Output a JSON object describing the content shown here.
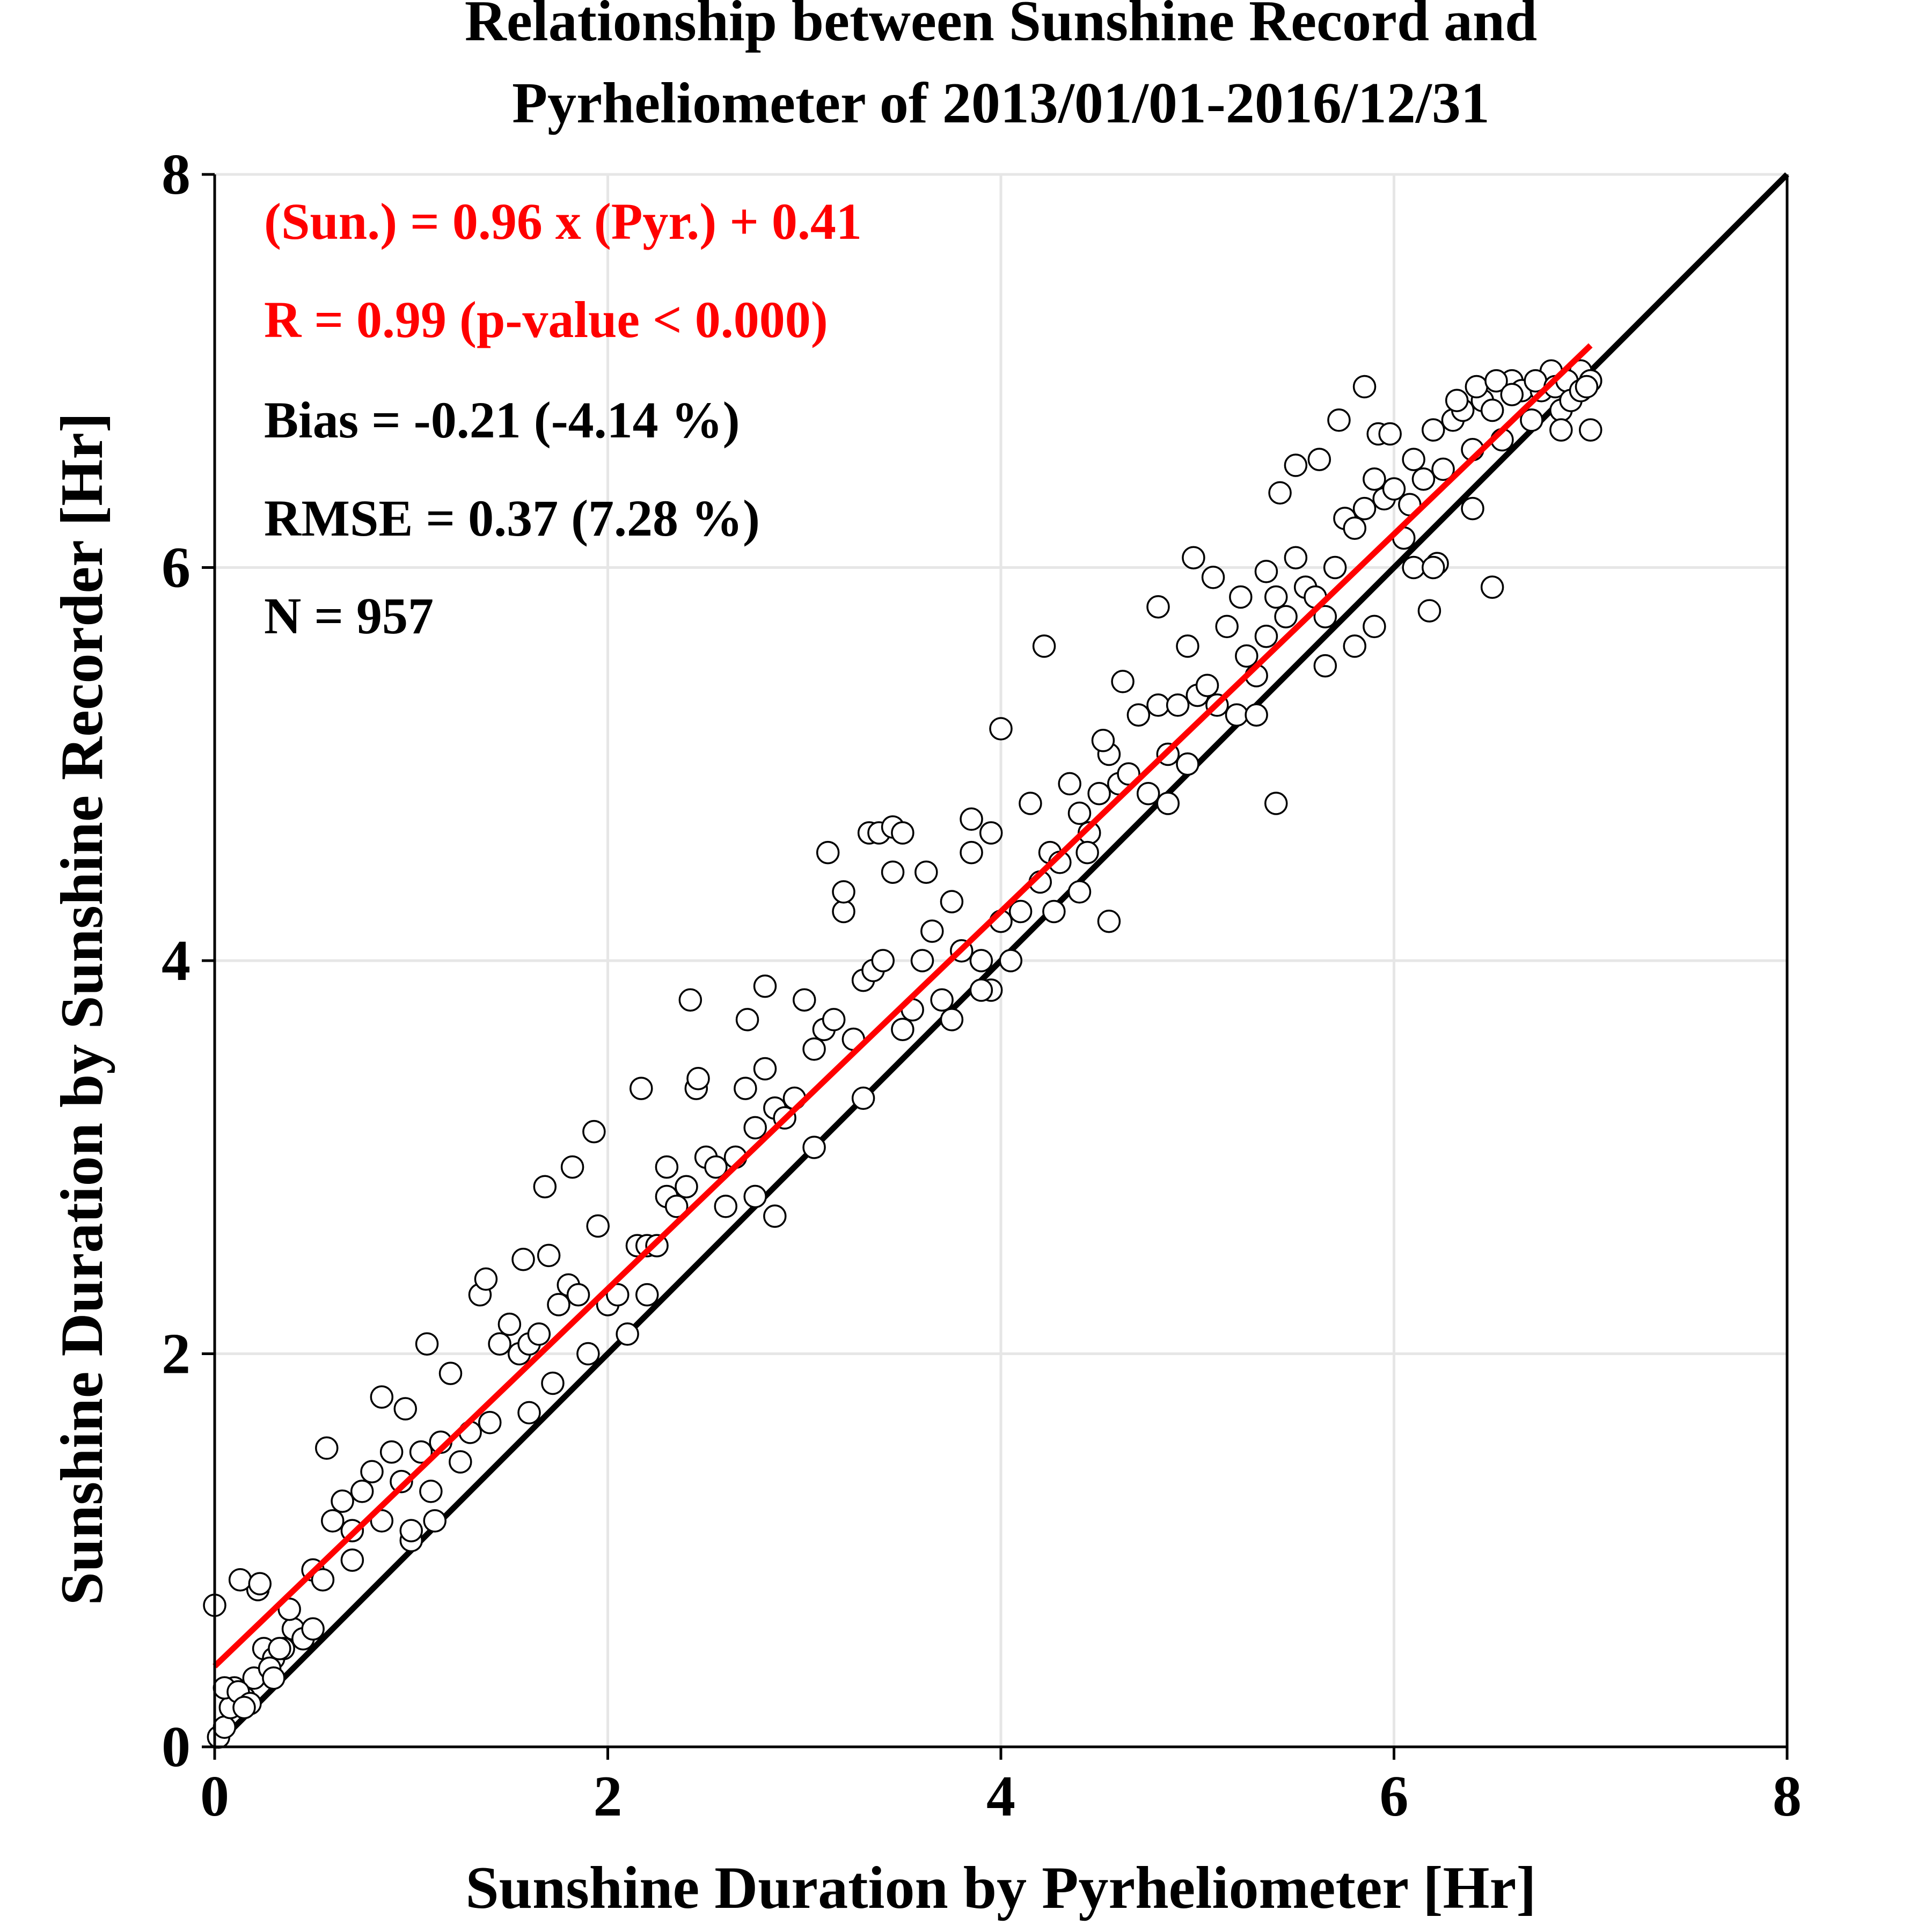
{
  "chart_data": {
    "type": "scatter",
    "title": [
      "Relationship  between  Sunshine Record  and",
      "Pyrheliometer  of  2013/01/01-2016/12/31"
    ],
    "xlabel": "Sunshine Duration  by  Pyrheliometer  [Hr]",
    "ylabel": "Sunshine Duration  by  Sunshine Recorder  [Hr]",
    "xlim": [
      0,
      8
    ],
    "ylim": [
      0,
      8
    ],
    "xticks": [
      "0",
      "2",
      "4",
      "6",
      "8"
    ],
    "yticks": [
      "0",
      "2",
      "4",
      "6",
      "8"
    ],
    "grid": true,
    "annotations": [
      {
        "text": "(Sun.) = 0.96 x (Pyr.) + 0.41",
        "color": "#ff0000"
      },
      {
        "text": "R = 0.99 (p-value < 0.000)",
        "color": "#ff0000"
      },
      {
        "text": "Bias = -0.21 (-4.14 %)",
        "color": "#000000"
      },
      {
        "text": "RMSE = 0.37 (7.28 %)",
        "color": "#000000"
      },
      {
        "text": "N = 957",
        "color": "#000000"
      }
    ],
    "reference_lines": [
      {
        "kind": "one-to-one",
        "x": [
          0,
          8
        ],
        "y": [
          0,
          8
        ],
        "color": "#000000"
      },
      {
        "kind": "regression",
        "x": [
          0,
          7.0
        ],
        "y": [
          0.41,
          7.13
        ],
        "color": "#ff0000"
      }
    ],
    "series": [
      {
        "marker": "open-circle",
        "x": [
          0.02,
          0.05,
          0.08,
          0.1,
          0.15,
          0.2,
          0.25,
          0.3,
          0.35,
          0.4,
          0.05,
          0.12,
          0.18,
          0.22,
          0.28,
          0.33,
          0.38,
          0.45,
          0.5,
          0.55,
          0.6,
          0.65,
          0.7,
          0.75,
          0.8,
          0.85,
          0.9,
          0.95,
          1.0,
          1.05,
          1.1,
          1.15,
          1.2,
          1.25,
          1.3,
          1.35,
          1.4,
          1.45,
          1.5,
          1.55,
          1.6,
          1.65,
          1.7,
          1.75,
          1.8,
          1.85,
          1.9,
          1.95,
          2.0,
          2.05,
          2.1,
          2.15,
          2.2,
          2.25,
          2.3,
          2.35,
          2.4,
          2.45,
          2.5,
          2.55,
          2.6,
          2.65,
          2.7,
          2.75,
          2.8,
          2.85,
          2.9,
          2.95,
          3.0,
          3.05,
          3.1,
          3.15,
          3.2,
          3.25,
          3.3,
          3.35,
          3.4,
          3.45,
          3.5,
          3.55,
          3.6,
          3.65,
          3.7,
          3.75,
          3.8,
          3.85,
          3.9,
          3.95,
          4.0,
          4.05,
          4.1,
          4.15,
          4.2,
          4.25,
          4.3,
          4.35,
          4.4,
          4.45,
          4.5,
          4.55,
          4.6,
          4.65,
          4.7,
          4.75,
          4.8,
          4.85,
          4.9,
          4.95,
          5.0,
          5.05,
          5.1,
          5.15,
          5.2,
          5.25,
          5.3,
          5.35,
          5.4,
          5.45,
          5.5,
          5.55,
          5.6,
          5.65,
          5.7,
          5.75,
          5.8,
          5.85,
          5.9,
          5.95,
          6.0,
          6.05,
          6.1,
          6.15,
          6.2,
          6.25,
          6.3,
          6.35,
          6.4,
          6.45,
          6.5,
          6.55,
          6.6,
          6.65,
          6.7,
          6.75,
          6.8,
          6.85,
          6.9,
          6.95,
          7.0,
          0.0,
          0.13,
          0.23,
          0.57,
          0.85,
          0.97,
          1.08,
          1.38,
          1.57,
          1.68,
          1.82,
          1.93,
          2.17,
          2.42,
          2.46,
          2.71,
          2.8,
          3.12,
          3.2,
          3.33,
          3.38,
          3.45,
          3.5,
          3.62,
          3.85,
          4.0,
          4.22,
          4.27,
          4.44,
          4.52,
          4.62,
          4.8,
          4.98,
          5.08,
          5.22,
          5.35,
          5.42,
          5.5,
          5.62,
          5.72,
          5.85,
          5.92,
          5.98,
          6.08,
          6.18,
          6.22,
          6.32,
          6.42,
          6.52,
          6.6,
          6.72,
          6.82,
          6.88,
          3.95,
          4.55,
          5.4,
          6.5,
          2.85,
          3.05,
          1.72,
          0.7,
          1.12,
          2.3,
          3.75,
          4.95,
          5.8,
          6.1,
          6.85,
          7.0,
          6.9,
          6.95,
          7.0,
          6.98,
          6.4,
          6.2,
          5.9,
          5.65,
          5.3,
          4.85,
          4.4,
          3.9,
          3.3,
          2.75,
          2.2,
          1.6,
          1.0,
          0.5,
          0.3,
          0.15
        ],
        "y": [
          0.05,
          0.1,
          0.2,
          0.3,
          0.25,
          0.35,
          0.5,
          0.45,
          0.5,
          0.6,
          0.3,
          0.28,
          0.22,
          0.8,
          0.4,
          0.5,
          0.7,
          0.55,
          0.9,
          0.85,
          1.15,
          1.25,
          1.1,
          1.3,
          1.4,
          1.15,
          1.5,
          1.35,
          1.05,
          1.5,
          1.3,
          1.55,
          1.9,
          1.45,
          1.6,
          2.3,
          1.65,
          2.05,
          2.15,
          2.0,
          2.05,
          2.1,
          2.5,
          2.25,
          2.35,
          2.3,
          2.0,
          2.65,
          2.25,
          2.3,
          2.1,
          2.55,
          2.55,
          2.55,
          2.8,
          2.75,
          2.85,
          3.35,
          3.0,
          2.95,
          2.75,
          3.0,
          3.35,
          3.15,
          3.45,
          3.25,
          3.2,
          3.3,
          3.8,
          3.55,
          3.65,
          3.7,
          4.25,
          3.6,
          3.9,
          3.95,
          4.0,
          4.45,
          3.65,
          3.75,
          4.0,
          4.15,
          3.8,
          4.3,
          4.05,
          4.55,
          4.0,
          4.65,
          4.2,
          4.0,
          4.25,
          4.8,
          4.4,
          4.55,
          4.5,
          4.9,
          4.75,
          4.65,
          4.85,
          5.05,
          4.9,
          4.95,
          5.25,
          4.85,
          5.3,
          5.05,
          5.3,
          5.6,
          5.35,
          5.4,
          5.3,
          5.7,
          5.25,
          5.55,
          5.45,
          5.65,
          5.85,
          5.75,
          6.05,
          5.9,
          5.85,
          5.75,
          6.0,
          6.25,
          6.2,
          6.3,
          6.45,
          6.35,
          6.4,
          6.15,
          6.55,
          6.45,
          6.7,
          6.5,
          6.75,
          6.8,
          6.6,
          6.85,
          6.8,
          6.65,
          6.95,
          6.9,
          6.75,
          6.9,
          7.0,
          6.8,
          6.95,
          7.0,
          6.95,
          0.72,
          0.85,
          0.83,
          1.52,
          1.78,
          1.72,
          2.05,
          2.38,
          2.48,
          2.85,
          2.95,
          3.13,
          3.35,
          3.8,
          3.4,
          3.7,
          3.87,
          4.55,
          4.35,
          4.65,
          4.65,
          4.68,
          4.65,
          4.45,
          4.72,
          5.18,
          5.6,
          4.25,
          4.55,
          5.12,
          5.42,
          5.8,
          6.05,
          5.95,
          5.85,
          5.98,
          6.38,
          6.52,
          6.55,
          6.75,
          6.92,
          6.68,
          6.68,
          6.32,
          5.78,
          6.02,
          6.85,
          6.92,
          6.95,
          6.88,
          6.95,
          6.92,
          6.95,
          3.85,
          4.2,
          4.8,
          5.9,
          2.7,
          3.05,
          1.85,
          0.95,
          1.15,
          2.95,
          3.7,
          5.0,
          5.6,
          6.0,
          6.7,
          6.7,
          6.85,
          6.9,
          6.95,
          6.92,
          6.3,
          6.0,
          5.7,
          5.5,
          5.25,
          4.8,
          4.35,
          3.85,
          3.3,
          2.8,
          2.3,
          1.7,
          1.1,
          0.6,
          0.35,
          0.2
        ]
      }
    ]
  }
}
